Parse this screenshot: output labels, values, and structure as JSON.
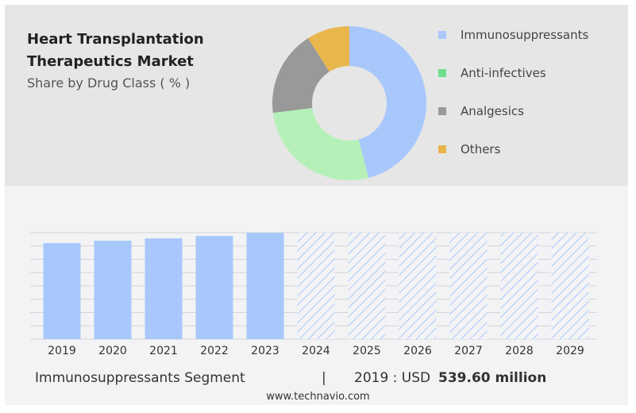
{
  "title": "Heart Transplantation Therapeutics Market",
  "subtitle": "Share by Drug Class ( % )",
  "colors": {
    "immuno": "#a8c8fc",
    "anti": "#b5f0b8",
    "analg": "#999999",
    "others": "#e8b64c"
  },
  "chart_data": [
    {
      "type": "pie",
      "donut": true,
      "title": "Share by Drug Class ( % )",
      "labels": [
        "Immunosuppressants",
        "Anti-infectives",
        "Analgesics",
        "Others"
      ],
      "legend_colors": [
        "#a8c8fc",
        "#6ee08a",
        "#999999",
        "#e8b64c"
      ],
      "values": [
        46,
        27,
        18,
        9
      ],
      "legend": "right"
    },
    {
      "type": "bar",
      "categories": [
        "2019",
        "2020",
        "2021",
        "2022",
        "2023",
        "2024",
        "2025",
        "2026",
        "2027",
        "2028",
        "2029"
      ],
      "values": [
        539.6,
        553,
        566,
        580,
        598,
        null,
        null,
        null,
        null,
        null,
        null
      ],
      "forecast": [
        false,
        false,
        false,
        false,
        false,
        true,
        true,
        true,
        true,
        true,
        true
      ],
      "ylabel": "",
      "xlabel": "",
      "ylim": [
        0,
        598
      ],
      "grid": true
    }
  ],
  "footer": {
    "segment": "Immunosuppressants Segment",
    "divider": "|",
    "year_label": "2019 : USD",
    "value": "539.60 million"
  },
  "website": "www.technavio.com"
}
